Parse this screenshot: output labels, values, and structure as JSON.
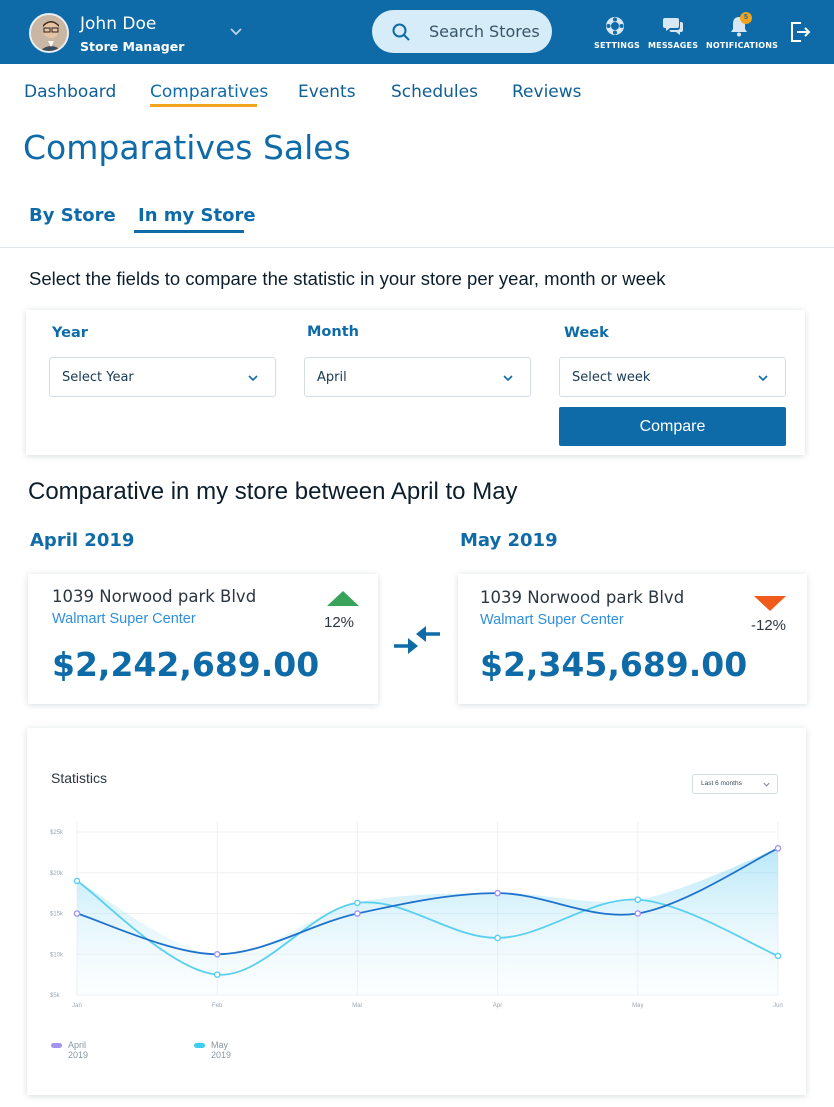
{
  "header": {
    "user_name": "John Doe",
    "user_role": "Store Manager",
    "search_placeholder": "Search Stores",
    "actions": [
      {
        "label": "SETTINGS",
        "icon": "settings-icon"
      },
      {
        "label": "MESSAGES",
        "icon": "messages-icon"
      },
      {
        "label": "NOTIFICATIONS",
        "icon": "bell-icon",
        "badge": "5"
      }
    ]
  },
  "tabs": [
    "Dashboard",
    "Comparatives",
    "Events",
    "Schedules",
    "Reviews"
  ],
  "active_tab": "Comparatives",
  "page_title": "Comparatives Sales",
  "subtabs": [
    "By Store",
    "In my Store"
  ],
  "active_subtab": "In my Store",
  "intro": "Select the fields to compare the statistic in your store per year, month or week",
  "filters": {
    "year": {
      "label": "Year",
      "value": "Select  Year"
    },
    "month": {
      "label": "Month",
      "value": "April"
    },
    "week": {
      "label": "Week",
      "value": "Select week"
    },
    "compare_label": "Compare"
  },
  "comparison": {
    "title": "Comparative in my store between April to May",
    "left": {
      "period": "April 2019",
      "address": "1039 Norwood park Blvd",
      "store": "Walmart Super Center",
      "amount": "$2,242,689.00",
      "change": "12%",
      "trend": "up",
      "trend_color": "#3aa35b"
    },
    "right": {
      "period": "May 2019",
      "address": "1039 Norwood park Blvd",
      "store": "Walmart Super Center",
      "amount": "$2,345,689.00",
      "change": "-12%",
      "trend": "down",
      "trend_color": "#f05a1a"
    }
  },
  "statistics": {
    "title": "Statistics",
    "range": "Last 6 months"
  },
  "chart_data": {
    "type": "line",
    "x": [
      "Jan",
      "Feb",
      "Mar",
      "Apr",
      "May",
      "Jun"
    ],
    "y_ticks": [
      "$25k",
      "$20k",
      "$15k",
      "$10k",
      "$5k"
    ],
    "ylim": [
      5000,
      25000
    ],
    "series": [
      {
        "name": "April 2019",
        "values": [
          15000,
          10000,
          15000,
          17500,
          15000,
          23000
        ],
        "color": "#1f73cc",
        "point_color": "#a294f5"
      },
      {
        "name": "May 2019",
        "values": [
          19000,
          7500,
          16300,
          12000,
          16700,
          9800
        ],
        "color": "#5ad0ef",
        "point_color": "#5ad0ef"
      }
    ],
    "grid": true,
    "legend": "bottom-left"
  }
}
